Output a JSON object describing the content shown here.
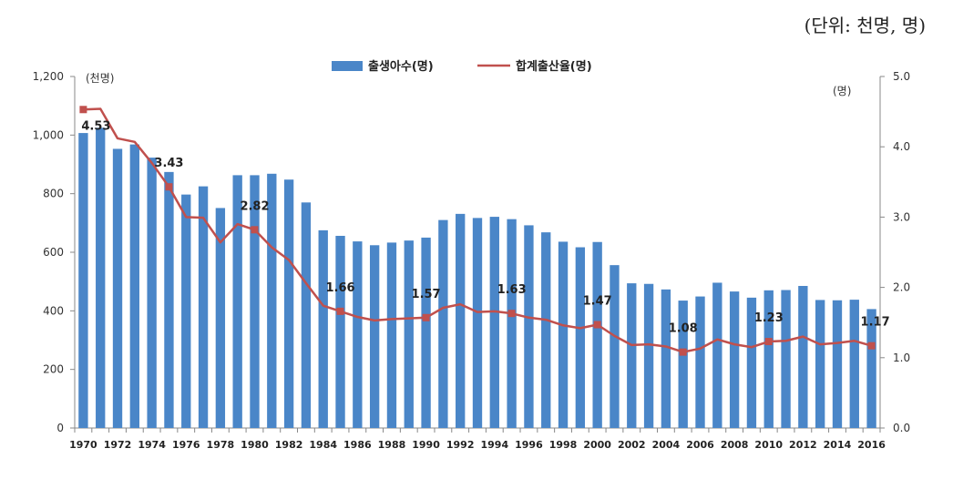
{
  "unit_note": "(단위: 천명, 명)",
  "chart_data": {
    "type": "bar+line",
    "categories": [
      "1970",
      "1971",
      "1972",
      "1973",
      "1974",
      "1975",
      "1976",
      "1977",
      "1978",
      "1979",
      "1980",
      "1981",
      "1982",
      "1983",
      "1984",
      "1985",
      "1986",
      "1987",
      "1988",
      "1989",
      "1990",
      "1991",
      "1992",
      "1993",
      "1994",
      "1995",
      "1996",
      "1997",
      "1998",
      "1999",
      "2000",
      "2001",
      "2002",
      "2003",
      "2004",
      "2005",
      "2006",
      "2007",
      "2008",
      "2009",
      "2010",
      "2011",
      "2012",
      "2013",
      "2014",
      "2015",
      "2016"
    ],
    "xtick_labels": [
      "1970",
      "1972",
      "1974",
      "1976",
      "1978",
      "1980",
      "1982",
      "1984",
      "1986",
      "1988",
      "1990",
      "1992",
      "1994",
      "1996",
      "1998",
      "2000",
      "2002",
      "2004",
      "2006",
      "2008",
      "2010",
      "2012",
      "2014",
      "2016"
    ],
    "series": [
      {
        "name": "출생아수(명)",
        "axis": "left",
        "type": "bar",
        "color": "#4a86c8",
        "values": [
          1007,
          1025,
          953,
          968,
          923,
          874,
          797,
          825,
          751,
          863,
          863,
          868,
          848,
          770,
          675,
          656,
          637,
          624,
          633,
          640,
          650,
          710,
          731,
          717,
          721,
          713,
          692,
          668,
          636,
          617,
          635,
          556,
          494,
          492,
          473,
          435,
          449,
          496,
          466,
          445,
          470,
          471,
          485,
          437,
          436,
          438,
          406
        ]
      },
      {
        "name": "합계출산율(명)",
        "axis": "right",
        "type": "line",
        "color": "#c0504d",
        "values": [
          4.53,
          4.54,
          4.12,
          4.07,
          3.77,
          3.43,
          3.0,
          2.99,
          2.64,
          2.9,
          2.82,
          2.57,
          2.39,
          2.06,
          1.74,
          1.66,
          1.58,
          1.53,
          1.55,
          1.56,
          1.57,
          1.71,
          1.76,
          1.65,
          1.66,
          1.63,
          1.57,
          1.54,
          1.46,
          1.42,
          1.47,
          1.31,
          1.18,
          1.19,
          1.16,
          1.08,
          1.13,
          1.26,
          1.19,
          1.15,
          1.23,
          1.24,
          1.3,
          1.19,
          1.21,
          1.24,
          1.17
        ]
      }
    ],
    "data_labels": [
      {
        "index": 0,
        "text": "4.53"
      },
      {
        "index": 5,
        "text": "3.43"
      },
      {
        "index": 10,
        "text": "2.82"
      },
      {
        "index": 15,
        "text": "1.66"
      },
      {
        "index": 20,
        "text": "1.57"
      },
      {
        "index": 25,
        "text": "1.63"
      },
      {
        "index": 30,
        "text": "1.47"
      },
      {
        "index": 35,
        "text": "1.08"
      },
      {
        "index": 40,
        "text": "1.23"
      },
      {
        "index": 46,
        "text": "1.17"
      }
    ],
    "y_left": {
      "unit": "(천명)",
      "min": 0,
      "max": 1200,
      "ticks": [
        0,
        200,
        400,
        600,
        800,
        1000,
        1200
      ],
      "tick_labels": [
        "0",
        "200",
        "400",
        "600",
        "800",
        "1,000",
        "1,200"
      ]
    },
    "y_right": {
      "unit": "(명)",
      "min": 0,
      "max": 5,
      "ticks": [
        0,
        1,
        2,
        3,
        4,
        5
      ],
      "tick_labels": [
        "0.0",
        "1.0",
        "2.0",
        "3.0",
        "4.0",
        "5.0"
      ]
    },
    "legend_position": "top-center",
    "grid": false
  }
}
